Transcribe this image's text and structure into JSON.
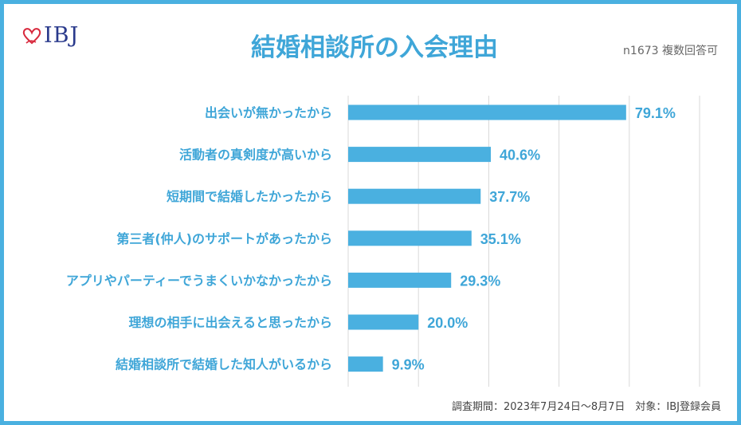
{
  "logo": {
    "text": "IBJ"
  },
  "chart_data": {
    "type": "bar",
    "orientation": "horizontal",
    "title": "結婚相談所の入会理由",
    "sample_note": "n1673 複数回答可",
    "categories": [
      "出会いが無かったから",
      "活動者の真剣度が高いから",
      "短期間で結婚したかったから",
      "第三者(仲人)のサポートがあったから",
      "アプリやパーティーでうまくいかなかったから",
      "理想の相手に出会えると思ったから",
      "結婚相談所で結婚した知人がいるから"
    ],
    "values": [
      79.1,
      40.6,
      37.7,
      35.1,
      29.3,
      20.0,
      9.9
    ],
    "value_labels": [
      "79.1%",
      "40.6%",
      "37.7%",
      "35.1%",
      "29.3%",
      "20.0%",
      "9.9%"
    ],
    "unit": "%",
    "xlim": [
      0,
      100
    ],
    "grid": true,
    "bar_color": "#4ab0e0",
    "label_color": "#3fa6d8"
  },
  "footer": {
    "text": "調査期間：2023年7月24日～8月7日　対象：IBJ登録会員"
  }
}
